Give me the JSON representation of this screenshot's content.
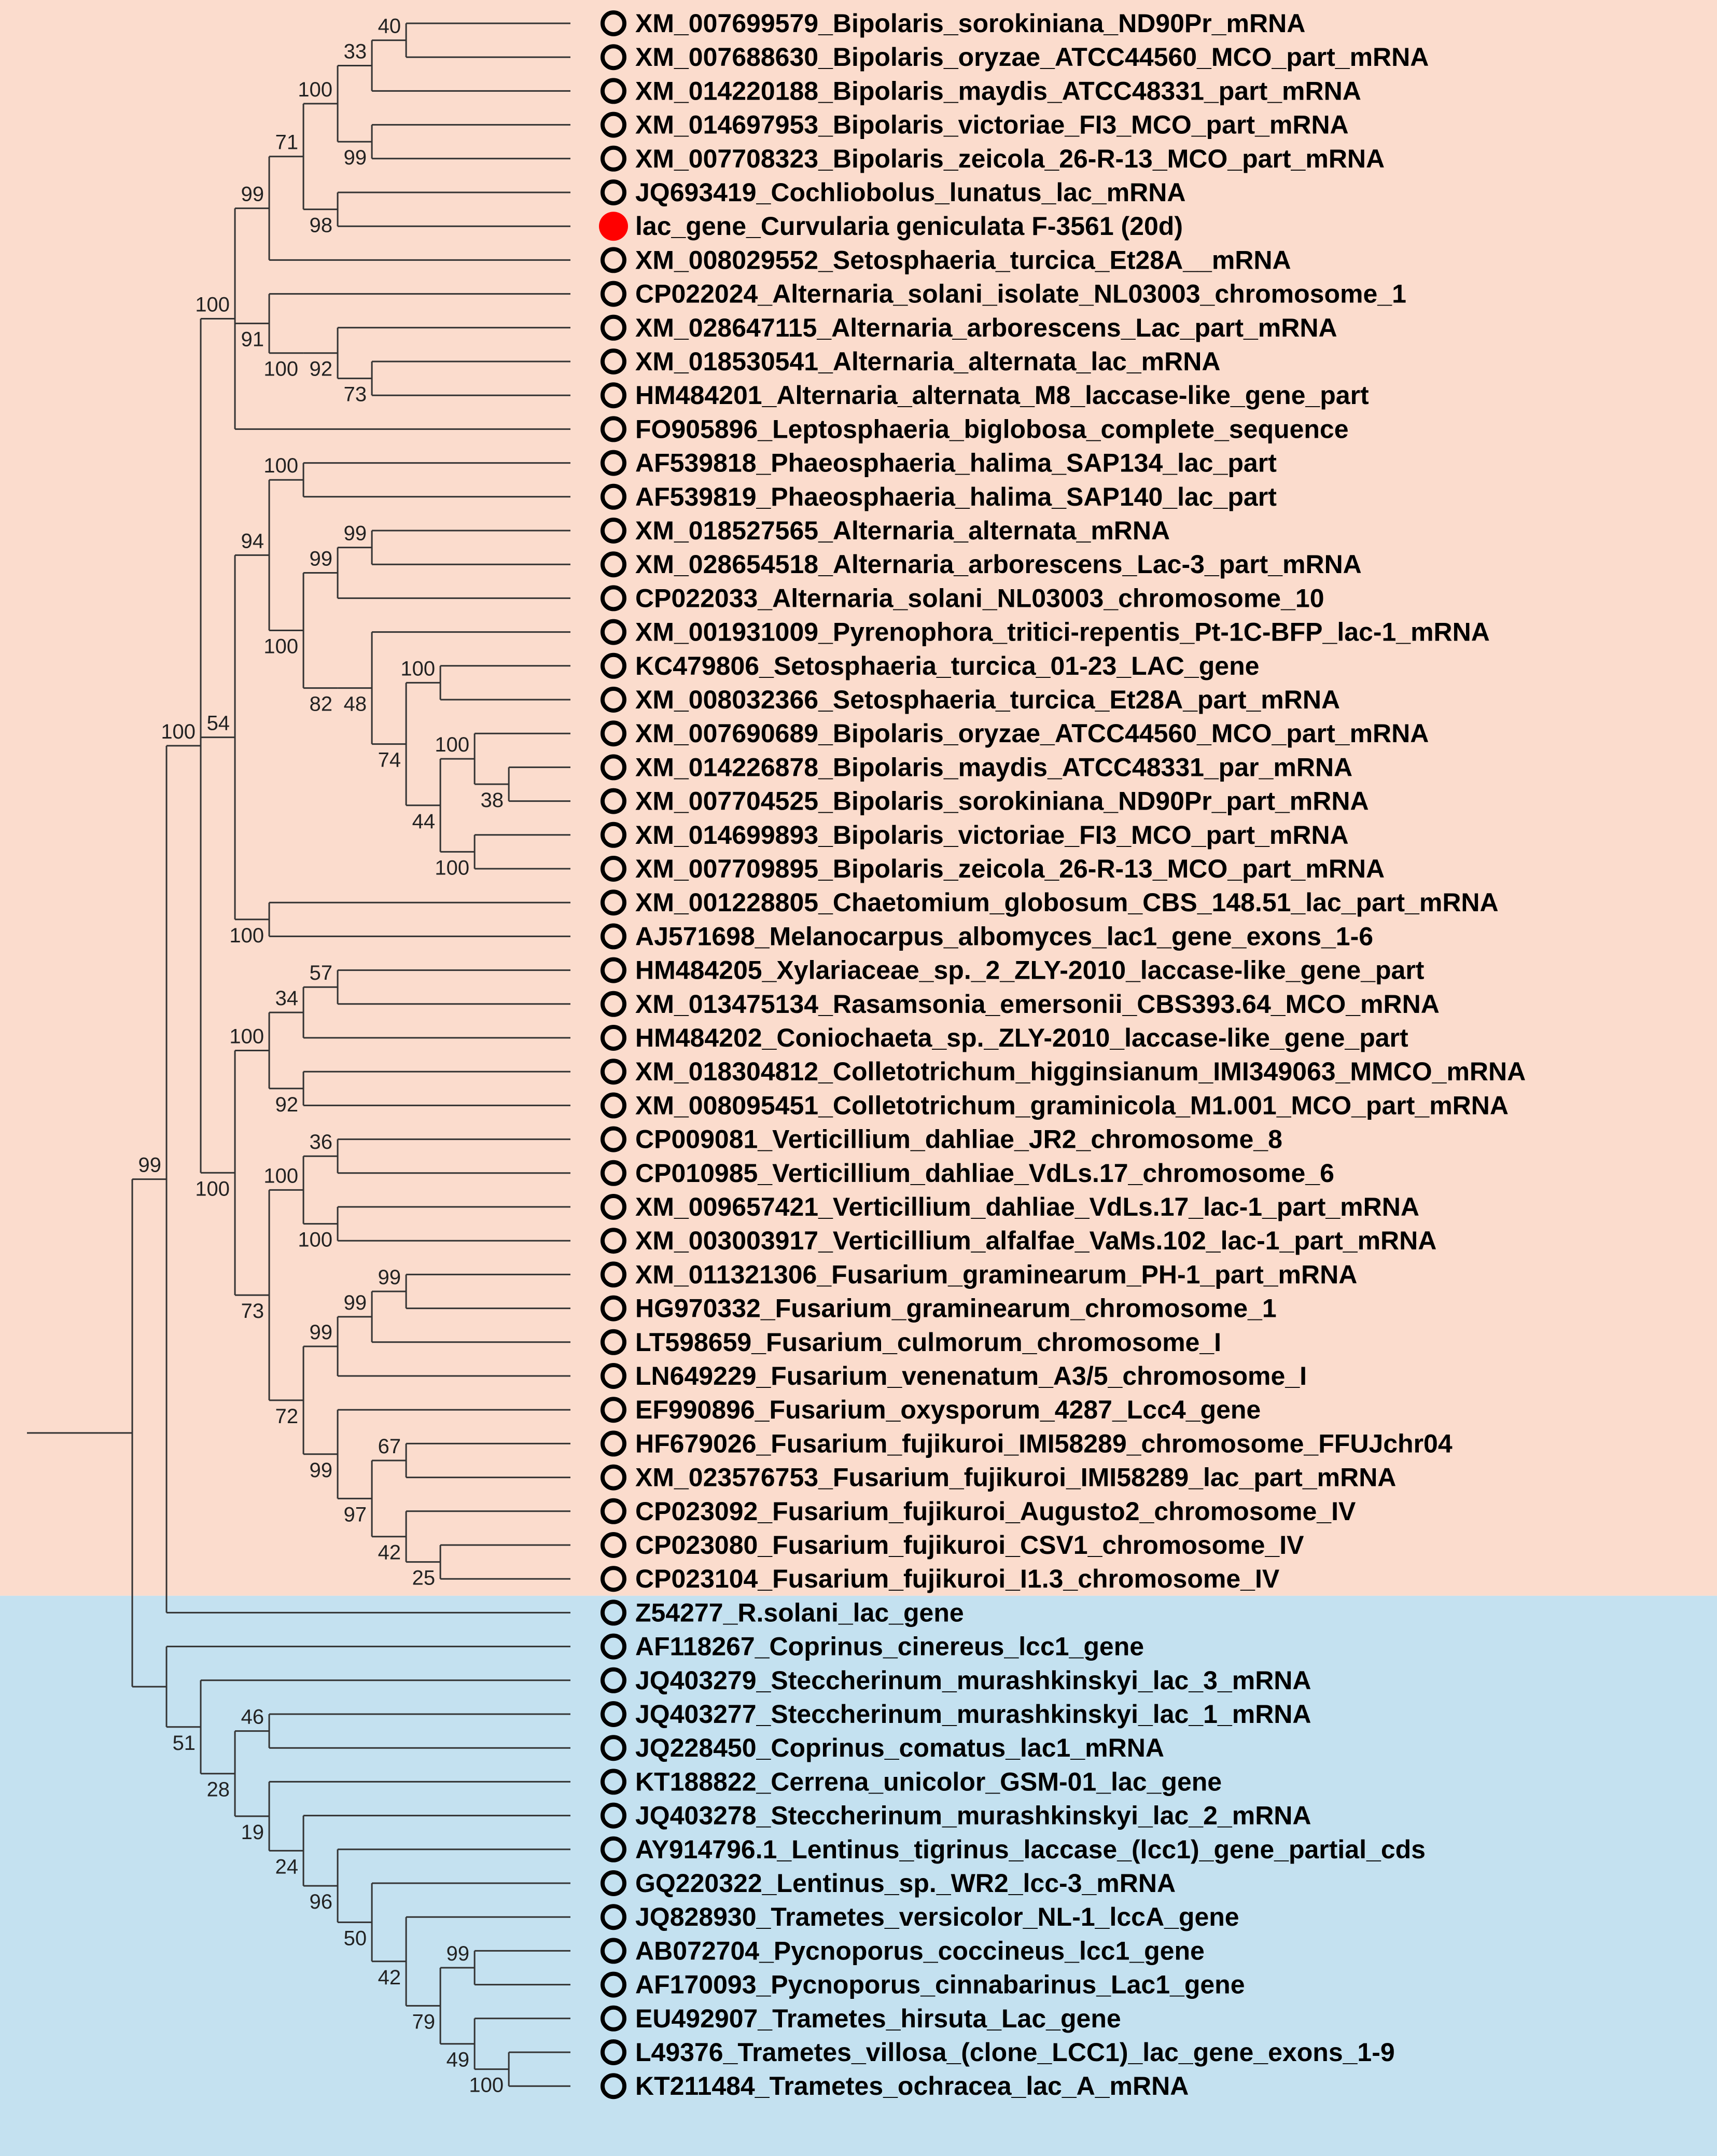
{
  "colors": {
    "ascomycota_bg": "#fbdccd",
    "basidiomycota_bg": "#c4e1f0",
    "branch": "#333333",
    "query_marker": "#ff0000",
    "marker": "#000000"
  },
  "tree": {
    "taxa": [
      {
        "label": "XM_007699579_Bipolaris_sorokiniana_ND90Pr_mRNA",
        "marker": "open"
      },
      {
        "label": "XM_007688630_Bipolaris_oryzae_ATCC44560_MCO_part_mRNA",
        "marker": "open"
      },
      {
        "label": "XM_014220188_Bipolaris_maydis_ATCC48331_part_mRNA",
        "marker": "open"
      },
      {
        "label": "XM_014697953_Bipolaris_victoriae_FI3_MCO_part_mRNA",
        "marker": "open"
      },
      {
        "label": "XM_007708323_Bipolaris_zeicola_26-R-13_MCO_part_mRNA",
        "marker": "open"
      },
      {
        "label": "JQ693419_Cochliobolus_lunatus_lac_mRNA",
        "marker": "open"
      },
      {
        "label": "lac_gene_Curvularia geniculata F-3561 (20d)",
        "marker": "filled"
      },
      {
        "label": "XM_008029552_Setosphaeria_turcica_Et28A__mRNA",
        "marker": "open"
      },
      {
        "label": "CP022024_Alternaria_solani_isolate_NL03003_chromosome_1",
        "marker": "open"
      },
      {
        "label": "XM_028647115_Alternaria_arborescens_Lac_part_mRNA",
        "marker": "open"
      },
      {
        "label": "XM_018530541_Alternaria_alternata_lac_mRNA",
        "marker": "open"
      },
      {
        "label": "HM484201_Alternaria_alternata_M8_laccase-like_gene_part",
        "marker": "open"
      },
      {
        "label": "FO905896_Leptosphaeria_biglobosa_complete_sequence",
        "marker": "open"
      },
      {
        "label": "AF539818_Phaeosphaeria_halima_SAP134_lac_part",
        "marker": "open"
      },
      {
        "label": "AF539819_Phaeosphaeria_halima_SAP140_lac_part",
        "marker": "open"
      },
      {
        "label": "XM_018527565_Alternaria_alternata_mRNA",
        "marker": "open"
      },
      {
        "label": "XM_028654518_Alternaria_arborescens_Lac-3_part_mRNA",
        "marker": "open"
      },
      {
        "label": "CP022033_Alternaria_solani_NL03003_chromosome_10",
        "marker": "open"
      },
      {
        "label": "XM_001931009_Pyrenophora_tritici-repentis_Pt-1C-BFP_lac-1_mRNA",
        "marker": "open"
      },
      {
        "label": "KC479806_Setosphaeria_turcica_01-23_LAC_gene",
        "marker": "open"
      },
      {
        "label": "XM_008032366_Setosphaeria_turcica_Et28A_part_mRNA",
        "marker": "open"
      },
      {
        "label": "XM_007690689_Bipolaris_oryzae_ATCC44560_MCO_part_mRNA",
        "marker": "open"
      },
      {
        "label": "XM_014226878_Bipolaris_maydis_ATCC48331_par_mRNA",
        "marker": "open"
      },
      {
        "label": "XM_007704525_Bipolaris_sorokiniana_ND90Pr_part_mRNA",
        "marker": "open"
      },
      {
        "label": "XM_014699893_Bipolaris_victoriae_FI3_MCO_part_mRNA",
        "marker": "open"
      },
      {
        "label": "XM_007709895_Bipolaris_zeicola_26-R-13_MCO_part_mRNA",
        "marker": "open"
      },
      {
        "label": "XM_001228805_Chaetomium_globosum_CBS_148.51_lac_part_mRNA",
        "marker": "open"
      },
      {
        "label": "AJ571698_Melanocarpus_albomyces_lac1_gene_exons_1-6",
        "marker": "open"
      },
      {
        "label": "HM484205_Xylariaceae_sp._2_ZLY-2010_laccase-like_gene_part",
        "marker": "open"
      },
      {
        "label": "XM_013475134_Rasamsonia_emersonii_CBS393.64_MCO_mRNA",
        "marker": "open"
      },
      {
        "label": "HM484202_Coniochaeta_sp._ZLY-2010_laccase-like_gene_part",
        "marker": "open"
      },
      {
        "label": "XM_018304812_Colletotrichum_higginsianum_IMI349063_MMCO_mRNA",
        "marker": "open"
      },
      {
        "label": "XM_008095451_Colletotrichum_graminicola_M1.001_MCO_part_mRNA",
        "marker": "open"
      },
      {
        "label": "CP009081_Verticillium_dahliae_JR2_chromosome_8",
        "marker": "open"
      },
      {
        "label": "CP010985_Verticillium_dahliae_VdLs.17_chromosome_6",
        "marker": "open"
      },
      {
        "label": "XM_009657421_Verticillium_dahliae_VdLs.17_lac-1_part_mRNA",
        "marker": "open"
      },
      {
        "label": "XM_003003917_Verticillium_alfalfae_VaMs.102_lac-1_part_mRNA",
        "marker": "open"
      },
      {
        "label": "XM_011321306_Fusarium_graminearum_PH-1_part_mRNA",
        "marker": "open"
      },
      {
        "label": "HG970332_Fusarium_graminearum_chromosome_1",
        "marker": "open"
      },
      {
        "label": "LT598659_Fusarium_culmorum_chromosome_I",
        "marker": "open"
      },
      {
        "label": "LN649229_Fusarium_venenatum_A3/5_chromosome_I",
        "marker": "open"
      },
      {
        "label": "EF990896_Fusarium_oxysporum_4287_Lcc4_gene",
        "marker": "open"
      },
      {
        "label": "HF679026_Fusarium_fujikuroi_IMI58289_chromosome_FFUJchr04",
        "marker": "open"
      },
      {
        "label": "XM_023576753_Fusarium_fujikuroi_IMI58289_lac_part_mRNA",
        "marker": "open"
      },
      {
        "label": "CP023092_Fusarium_fujikuroi_Augusto2_chromosome_IV",
        "marker": "open"
      },
      {
        "label": "CP023080_Fusarium_fujikuroi_CSV1_chromosome_IV",
        "marker": "open"
      },
      {
        "label": "CP023104_Fusarium_fujikuroi_I1.3_chromosome_IV",
        "marker": "open"
      },
      {
        "label": "Z54277_R.solani_lac_gene",
        "marker": "open"
      },
      {
        "label": "AF118267_Coprinus_cinereus_lcc1_gene",
        "marker": "open"
      },
      {
        "label": "JQ403279_Steccherinum_murashkinskyi_lac_3_mRNA",
        "marker": "open"
      },
      {
        "label": "JQ403277_Steccherinum_murashkinskyi_lac_1_mRNA",
        "marker": "open"
      },
      {
        "label": "JQ228450_Coprinus_comatus_lac1_mRNA",
        "marker": "open"
      },
      {
        "label": "KT188822_Cerrena_unicolor_GSM-01_lac_gene",
        "marker": "open"
      },
      {
        "label": "JQ403278_Steccherinum_murashkinskyi_lac_2_mRNA",
        "marker": "open"
      },
      {
        "label": "AY914796.1_Lentinus_tigrinus_laccase_(lcc1)_gene_partial_cds",
        "marker": "open"
      },
      {
        "label": "GQ220322_Lentinus_sp._WR2_lcc-3_mRNA",
        "marker": "open"
      },
      {
        "label": "JQ828930_Trametes_versicolor_NL-1_lccA_gene",
        "marker": "open"
      },
      {
        "label": "AB072704_Pycnoporus_coccineus_lcc1_gene",
        "marker": "open"
      },
      {
        "label": "AF170093_Pycnoporus_cinnabarinus_Lac1_gene",
        "marker": "open"
      },
      {
        "label": "EU492907_Trametes_hirsuta_Lac_gene",
        "marker": "open"
      },
      {
        "label": "L49376_Trametes_villosa_(clone_LCC1)_lac_gene_exons_1-9",
        "marker": "open"
      },
      {
        "label": "KT211484_Trametes_ochracea_lac_A_mRNA",
        "marker": "open"
      }
    ],
    "newick": "((((((((((((0,1)40,2)33,(3,4)99)100,(5,6)98)71,7)99,(8,((9,(10,11)73)92)100)91,12)100,(((13,14)100,(((15,16)99,17)99,((18,((19,20)100,((21,(22,23)38)100,(24,25)100)44)74)48)82)100)94,(26,27)100)54,((((28,29)57,30)34,(31,32)92)100,(((33,34)36,(35,36)100)100,((((37,38)99,39)99,40)99,(41,((42,43)67,(44,(45,46)25)42)97)99)72)73)100)100,47)99,(48,(49,((50,51)46,(52,(53,(54,(55,(56,((57,58)99,(59,(60,61)100)49)79)42)50)96)24)19)28)51)"
  }
}
